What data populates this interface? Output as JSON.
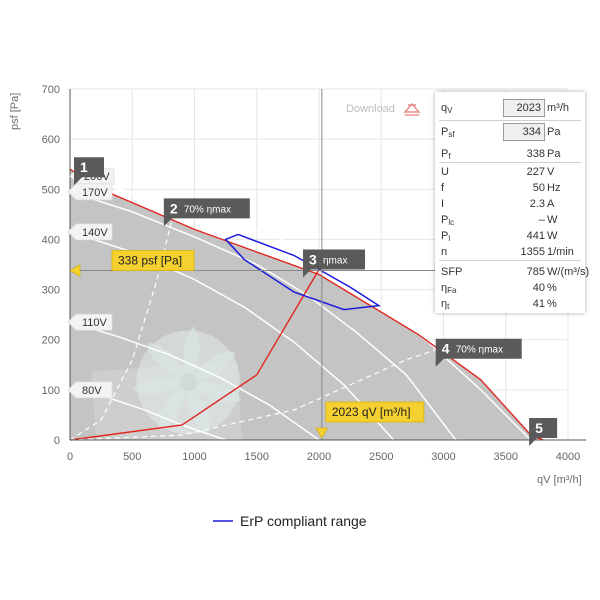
{
  "chart_data": {
    "type": "line",
    "xlabel": "qV [m³/h]",
    "ylabel": "psf [Pa]",
    "xlim": [
      0,
      4000
    ],
    "ylim": [
      0,
      700
    ],
    "xticks": [
      0,
      500,
      1000,
      1500,
      2000,
      2500,
      3000,
      3500,
      4000
    ],
    "yticks": [
      0,
      100,
      200,
      300,
      400,
      500,
      600,
      700
    ],
    "grid": true,
    "download_label": "Download",
    "legend": {
      "label": "ErP compliant range",
      "color": "#1a1adb",
      "placement": "bottom-center"
    },
    "envelope": {
      "x": [
        0,
        250,
        1000,
        2000,
        2800,
        3300,
        3700,
        3800
      ],
      "y": [
        540,
        500,
        420,
        330,
        210,
        120,
        10,
        0
      ]
    },
    "voltage_curves": [
      {
        "label": "200V",
        "x": [
          0,
          600,
          1200,
          1700,
          2100,
          2500,
          2900,
          3300,
          3700
        ],
        "y": [
          530,
          485,
          445,
          400,
          340,
          270,
          190,
          100,
          0
        ]
      },
      {
        "label": "170V",
        "x": [
          0,
          500,
          1000,
          1500,
          1900,
          2300,
          2700,
          3100
        ],
        "y": [
          495,
          455,
          405,
          350,
          290,
          215,
          130,
          0
        ]
      },
      {
        "label": "140V",
        "x": [
          0,
          500,
          1000,
          1400,
          1800,
          2200,
          2600
        ],
        "y": [
          415,
          375,
          320,
          265,
          195,
          110,
          0
        ]
      },
      {
        "label": "110V",
        "x": [
          0,
          400,
          800,
          1200,
          1600,
          2000
        ],
        "y": [
          235,
          205,
          170,
          125,
          70,
          0
        ]
      },
      {
        "label": "80V",
        "x": [
          0,
          300,
          600,
          900,
          1250
        ],
        "y": [
          100,
          85,
          60,
          30,
          0
        ]
      }
    ],
    "efficiency_curves": [
      {
        "label": "70% ηmax",
        "x": [
          0,
          250,
          500,
          700,
          850
        ],
        "y": [
          0,
          40,
          160,
          320,
          470
        ]
      },
      {
        "label": "ηmax",
        "x": [
          0,
          900,
          1500,
          2000
        ],
        "y": [
          0,
          30,
          130,
          340
        ]
      },
      {
        "label": "70% ηmax",
        "x": [
          0,
          900,
          1800,
          2700,
          3300
        ],
        "y": [
          0,
          10,
          60,
          160,
          210
        ]
      }
    ],
    "erp_range": {
      "x": [
        1350,
        1800,
        2000,
        2250,
        2480,
        2200,
        1800,
        1400,
        1250,
        1350
      ],
      "y": [
        410,
        368,
        340,
        305,
        268,
        260,
        295,
        360,
        400,
        410
      ]
    },
    "operating_point": {
      "q": 2023,
      "p": 338,
      "q_label": "2023 qV [m³/h]",
      "p_label": "338 psf [Pa]"
    },
    "markers": [
      {
        "num": "1",
        "x": 0,
        "y": 540,
        "text": ""
      },
      {
        "num": "2",
        "x": 850,
        "y": 470,
        "text": "70% ηmax"
      },
      {
        "num": "3",
        "x": 2000,
        "y": 340,
        "text": "ηmax"
      },
      {
        "num": "4",
        "x": 3050,
        "y": 190,
        "text": "70% ηmax"
      },
      {
        "num": "5",
        "x": 3800,
        "y": 0,
        "text": ""
      }
    ]
  },
  "info_panel": {
    "rows": [
      {
        "sym": "q",
        "sub": "V",
        "value": "2023",
        "unit": "m³/h",
        "input": true
      },
      {
        "sym": "P",
        "sub": "sf",
        "value": "334",
        "unit": "Pa",
        "input": true
      },
      {
        "sym": "P",
        "sub": "f",
        "value": "338",
        "unit": "Pa",
        "input": false
      },
      {
        "sym": "U",
        "sub": "",
        "value": "227",
        "unit": "V",
        "input": false
      },
      {
        "sym": "f",
        "sub": "",
        "value": "50",
        "unit": "Hz",
        "input": false
      },
      {
        "sym": "I",
        "sub": "",
        "value": "2.3",
        "unit": "A",
        "input": false
      },
      {
        "sym": "P",
        "sub": "lc",
        "value": "–",
        "unit": "W",
        "input": false
      },
      {
        "sym": "P",
        "sub": "l",
        "value": "441",
        "unit": "W",
        "input": false
      },
      {
        "sym": "n",
        "sub": "",
        "value": "1355",
        "unit": "1/min",
        "input": false
      },
      {
        "sym": "SFP",
        "sub": "",
        "value": "785",
        "unit": "W/(m³/s)",
        "input": false
      },
      {
        "sym": "η",
        "sub": "Fa",
        "value": "40",
        "unit": "%",
        "input": false
      },
      {
        "sym": "η",
        "sub": "t",
        "value": "41",
        "unit": "%",
        "input": false
      }
    ]
  }
}
